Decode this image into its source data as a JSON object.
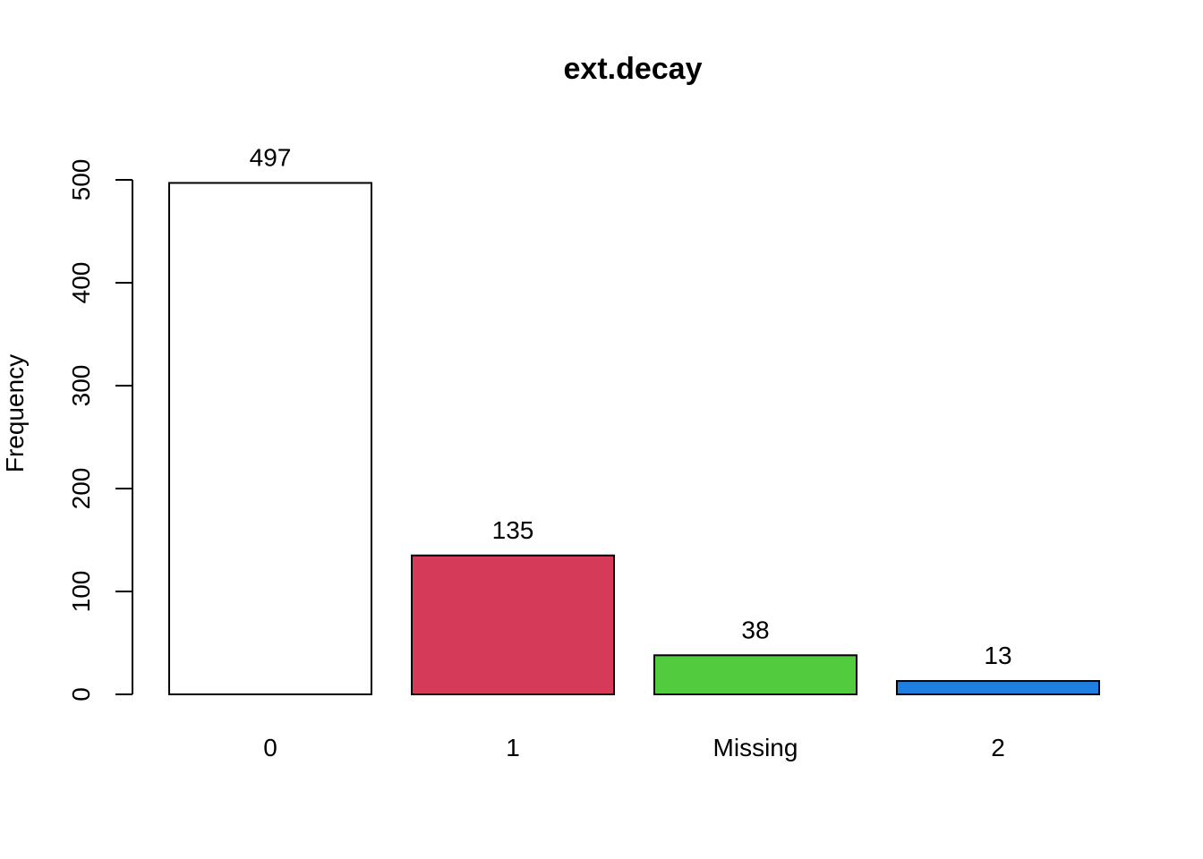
{
  "chart_data": {
    "type": "bar",
    "title": "ext.decay",
    "xlabel": "",
    "ylabel": "Frequency",
    "categories": [
      "0",
      "1",
      "Missing",
      "2"
    ],
    "values": [
      497,
      135,
      38,
      13
    ],
    "colors": [
      "#ffffff",
      "#d53a59",
      "#52cb3f",
      "#1f7fe0"
    ],
    "data_labels": [
      "497",
      "135",
      "38",
      "13"
    ],
    "yticks": [
      0,
      100,
      200,
      300,
      400,
      500
    ],
    "ytick_labels": [
      "0",
      "100",
      "200",
      "300",
      "400",
      "500"
    ],
    "ylim": [
      0,
      500
    ],
    "grid": false,
    "legend": "none"
  }
}
